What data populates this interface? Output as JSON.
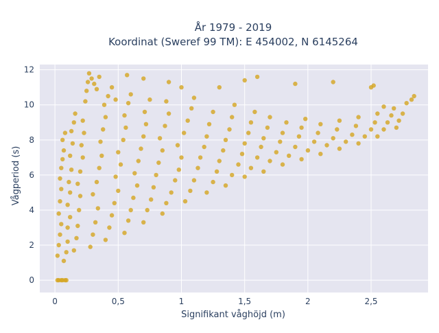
{
  "colors": {
    "plot_background": "#e5e5f0",
    "grid": "#ffffff",
    "marker": "#d4a520",
    "text": "#2a3f5f"
  },
  "chart_data": {
    "type": "scatter",
    "title_line1": "År 1979 - 2019",
    "title_line2": "Koordinat (Sweref 99 TM): E 454002, N 6145264",
    "xlabel": "Signifikant våghöjd (m)",
    "ylabel": "Vågperiod (s)",
    "xlim": [
      -0.12,
      2.95
    ],
    "ylim": [
      -0.7,
      12.3
    ],
    "grid": true,
    "x_ticks": [
      0,
      0.5,
      1,
      1.5,
      2,
      2.5
    ],
    "x_tick_labels": [
      "0",
      "0,5",
      "1",
      "1,5",
      "2",
      "2,5"
    ],
    "y_ticks": [
      0,
      2,
      4,
      6,
      8,
      10,
      12
    ],
    "y_tick_labels": [
      "0",
      "2",
      "4",
      "6",
      "8",
      "10",
      "12"
    ],
    "series": [
      {
        "marker_color": "#d4a520",
        "points": [
          [
            0.02,
            0.0
          ],
          [
            0.03,
            0.0
          ],
          [
            0.05,
            0.0
          ],
          [
            0.06,
            0.0
          ],
          [
            0.08,
            0.0
          ],
          [
            0.09,
            0.0
          ],
          [
            0.02,
            1.4
          ],
          [
            0.03,
            2.0
          ],
          [
            0.04,
            2.6
          ],
          [
            0.05,
            3.2
          ],
          [
            0.03,
            3.8
          ],
          [
            0.04,
            4.5
          ],
          [
            0.05,
            5.2
          ],
          [
            0.04,
            5.8
          ],
          [
            0.05,
            6.4
          ],
          [
            0.06,
            6.9
          ],
          [
            0.07,
            7.4
          ],
          [
            0.06,
            8.0
          ],
          [
            0.08,
            8.4
          ],
          [
            0.07,
            1.1
          ],
          [
            0.09,
            1.6
          ],
          [
            0.1,
            2.2
          ],
          [
            0.1,
            3.0
          ],
          [
            0.12,
            3.6
          ],
          [
            0.1,
            4.3
          ],
          [
            0.12,
            5.0
          ],
          [
            0.11,
            5.6
          ],
          [
            0.13,
            6.3
          ],
          [
            0.12,
            7.1
          ],
          [
            0.14,
            7.8
          ],
          [
            0.13,
            8.5
          ],
          [
            0.15,
            9.0
          ],
          [
            0.16,
            9.5
          ],
          [
            0.15,
            1.7
          ],
          [
            0.17,
            2.4
          ],
          [
            0.18,
            3.1
          ],
          [
            0.19,
            4.0
          ],
          [
            0.2,
            4.8
          ],
          [
            0.18,
            5.5
          ],
          [
            0.2,
            6.2
          ],
          [
            0.22,
            7.0
          ],
          [
            0.21,
            7.7
          ],
          [
            0.23,
            8.4
          ],
          [
            0.22,
            9.1
          ],
          [
            0.24,
            10.2
          ],
          [
            0.25,
            10.8
          ],
          [
            0.26,
            11.3
          ],
          [
            0.27,
            11.8
          ],
          [
            0.29,
            11.5
          ],
          [
            0.31,
            11.2
          ],
          [
            0.33,
            10.9
          ],
          [
            0.28,
            1.9
          ],
          [
            0.3,
            2.6
          ],
          [
            0.32,
            3.3
          ],
          [
            0.34,
            4.1
          ],
          [
            0.3,
            4.9
          ],
          [
            0.33,
            5.6
          ],
          [
            0.35,
            6.4
          ],
          [
            0.37,
            7.1
          ],
          [
            0.36,
            7.9
          ],
          [
            0.38,
            8.6
          ],
          [
            0.4,
            9.3
          ],
          [
            0.39,
            10.0
          ],
          [
            0.42,
            10.5
          ],
          [
            0.45,
            11.0
          ],
          [
            0.48,
            10.3
          ],
          [
            0.4,
            2.3
          ],
          [
            0.43,
            3.0
          ],
          [
            0.45,
            3.7
          ],
          [
            0.47,
            4.4
          ],
          [
            0.5,
            5.1
          ],
          [
            0.48,
            5.9
          ],
          [
            0.52,
            6.6
          ],
          [
            0.5,
            7.3
          ],
          [
            0.54,
            8.0
          ],
          [
            0.56,
            8.7
          ],
          [
            0.55,
            9.4
          ],
          [
            0.58,
            10.1
          ],
          [
            0.6,
            10.6
          ],
          [
            0.55,
            2.7
          ],
          [
            0.58,
            3.4
          ],
          [
            0.6,
            4.0
          ],
          [
            0.62,
            4.7
          ],
          [
            0.65,
            5.4
          ],
          [
            0.63,
            6.1
          ],
          [
            0.66,
            6.8
          ],
          [
            0.68,
            7.5
          ],
          [
            0.7,
            8.2
          ],
          [
            0.72,
            8.9
          ],
          [
            0.71,
            9.6
          ],
          [
            0.75,
            10.3
          ],
          [
            0.7,
            3.3
          ],
          [
            0.73,
            4.0
          ],
          [
            0.76,
            4.6
          ],
          [
            0.78,
            5.3
          ],
          [
            0.8,
            6.0
          ],
          [
            0.82,
            6.7
          ],
          [
            0.85,
            7.4
          ],
          [
            0.83,
            8.1
          ],
          [
            0.87,
            8.8
          ],
          [
            0.9,
            9.5
          ],
          [
            0.88,
            10.2
          ],
          [
            0.85,
            3.8
          ],
          [
            0.88,
            4.4
          ],
          [
            0.92,
            5.0
          ],
          [
            0.95,
            5.7
          ],
          [
            0.98,
            6.3
          ],
          [
            1.0,
            7.0
          ],
          [
            0.97,
            7.7
          ],
          [
            1.02,
            8.4
          ],
          [
            1.05,
            9.1
          ],
          [
            1.08,
            9.8
          ],
          [
            1.1,
            10.4
          ],
          [
            1.03,
            4.5
          ],
          [
            1.07,
            5.1
          ],
          [
            1.1,
            5.7
          ],
          [
            1.13,
            6.4
          ],
          [
            1.15,
            7.0
          ],
          [
            1.18,
            7.6
          ],
          [
            1.2,
            8.2
          ],
          [
            1.22,
            8.9
          ],
          [
            1.25,
            9.6
          ],
          [
            1.2,
            5.0
          ],
          [
            1.25,
            5.6
          ],
          [
            1.28,
            6.2
          ],
          [
            1.3,
            6.8
          ],
          [
            1.33,
            7.4
          ],
          [
            1.35,
            8.0
          ],
          [
            1.38,
            8.6
          ],
          [
            1.4,
            9.3
          ],
          [
            1.42,
            10.0
          ],
          [
            1.35,
            5.4
          ],
          [
            1.4,
            6.0
          ],
          [
            1.45,
            6.6
          ],
          [
            1.48,
            7.2
          ],
          [
            1.5,
            7.8
          ],
          [
            1.53,
            8.4
          ],
          [
            1.55,
            9.0
          ],
          [
            1.58,
            9.6
          ],
          [
            1.5,
            5.9
          ],
          [
            1.55,
            6.4
          ],
          [
            1.6,
            7.0
          ],
          [
            1.63,
            7.6
          ],
          [
            1.65,
            8.1
          ],
          [
            1.68,
            8.7
          ],
          [
            1.7,
            9.3
          ],
          [
            1.65,
            6.2
          ],
          [
            1.7,
            6.8
          ],
          [
            1.75,
            7.3
          ],
          [
            1.78,
            7.9
          ],
          [
            1.8,
            8.4
          ],
          [
            1.83,
            9.0
          ],
          [
            1.8,
            6.6
          ],
          [
            1.85,
            7.1
          ],
          [
            1.9,
            7.6
          ],
          [
            1.93,
            8.2
          ],
          [
            1.95,
            8.7
          ],
          [
            1.98,
            9.2
          ],
          [
            1.95,
            6.9
          ],
          [
            2.0,
            7.4
          ],
          [
            2.05,
            7.9
          ],
          [
            2.08,
            8.4
          ],
          [
            2.1,
            8.9
          ],
          [
            2.1,
            7.2
          ],
          [
            2.15,
            7.7
          ],
          [
            2.2,
            8.1
          ],
          [
            2.23,
            8.6
          ],
          [
            2.25,
            9.1
          ],
          [
            2.25,
            7.5
          ],
          [
            2.3,
            7.9
          ],
          [
            2.35,
            8.3
          ],
          [
            2.38,
            8.8
          ],
          [
            2.4,
            9.3
          ],
          [
            2.4,
            7.8
          ],
          [
            2.45,
            8.2
          ],
          [
            2.5,
            8.6
          ],
          [
            2.53,
            9.0
          ],
          [
            2.55,
            9.5
          ],
          [
            2.55,
            8.2
          ],
          [
            2.6,
            8.6
          ],
          [
            2.63,
            9.0
          ],
          [
            2.66,
            9.4
          ],
          [
            2.68,
            9.8
          ],
          [
            2.7,
            8.7
          ],
          [
            2.72,
            9.1
          ],
          [
            2.75,
            9.5
          ],
          [
            2.78,
            10.1
          ],
          [
            2.82,
            10.3
          ],
          [
            2.84,
            10.5
          ],
          [
            2.6,
            9.9
          ],
          [
            2.5,
            11.0
          ],
          [
            2.52,
            11.1
          ],
          [
            2.2,
            11.3
          ],
          [
            1.9,
            11.2
          ],
          [
            1.6,
            11.6
          ],
          [
            1.5,
            11.4
          ],
          [
            1.3,
            11.0
          ],
          [
            1.0,
            11.0
          ],
          [
            0.7,
            11.5
          ],
          [
            0.9,
            11.3
          ],
          [
            0.57,
            11.7
          ],
          [
            0.35,
            11.6
          ]
        ]
      }
    ]
  }
}
